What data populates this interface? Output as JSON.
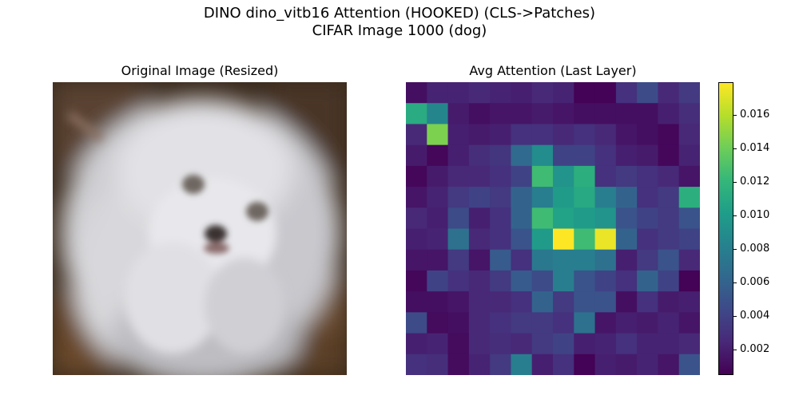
{
  "figure": {
    "title_line1": "DINO dino_vitb16 Attention (HOOKED) (CLS->Patches)",
    "title_line2": "CIFAR Image 1000 (dog)"
  },
  "left_panel": {
    "title": "Original Image (Resized)"
  },
  "right_panel": {
    "title": "Avg Attention (Last Layer)"
  },
  "chart_data": {
    "type": "heatmap",
    "title": "Avg Attention (Last Layer)",
    "colormap": "viridis",
    "colorbar": {
      "vmin": 0.0005,
      "vmax": 0.018,
      "ticks": [
        0.002,
        0.004,
        0.006,
        0.008,
        0.01,
        0.012,
        0.014,
        0.016
      ],
      "tick_labels": [
        "0.002",
        "0.004",
        "0.006",
        "0.008",
        "0.010",
        "0.012",
        "0.014",
        "0.016"
      ]
    },
    "grid": false,
    "rows": 14,
    "cols": 14,
    "values": [
      [
        0.0012,
        0.0022,
        0.0022,
        0.0025,
        0.0022,
        0.002,
        0.0025,
        0.0022,
        0.0006,
        0.0006,
        0.003,
        0.0045,
        0.0025,
        0.0035
      ],
      [
        0.0112,
        0.0085,
        0.0018,
        0.0012,
        0.0015,
        0.0015,
        0.0018,
        0.0015,
        0.0012,
        0.0012,
        0.0012,
        0.0012,
        0.002,
        0.0028
      ],
      [
        0.0025,
        0.0145,
        0.002,
        0.0018,
        0.002,
        0.003,
        0.003,
        0.0025,
        0.003,
        0.0025,
        0.0015,
        0.0012,
        0.0008,
        0.0025
      ],
      [
        0.0018,
        0.0008,
        0.002,
        0.0028,
        0.0032,
        0.0065,
        0.009,
        0.004,
        0.004,
        0.003,
        0.002,
        0.0018,
        0.0008,
        0.0022
      ],
      [
        0.0008,
        0.0018,
        0.0025,
        0.0025,
        0.003,
        0.004,
        0.0125,
        0.0095,
        0.0115,
        0.003,
        0.0035,
        0.003,
        0.0025,
        0.0015
      ],
      [
        0.0015,
        0.0022,
        0.0035,
        0.004,
        0.0035,
        0.006,
        0.008,
        0.01,
        0.011,
        0.008,
        0.006,
        0.003,
        0.0035,
        0.0115
      ],
      [
        0.0025,
        0.002,
        0.0045,
        0.002,
        0.003,
        0.006,
        0.0125,
        0.0105,
        0.01,
        0.0095,
        0.005,
        0.004,
        0.0035,
        0.005
      ],
      [
        0.002,
        0.0022,
        0.007,
        0.0025,
        0.003,
        0.005,
        0.01,
        0.018,
        0.0125,
        0.0175,
        0.006,
        0.003,
        0.0035,
        0.004
      ],
      [
        0.0015,
        0.0015,
        0.0035,
        0.0015,
        0.0055,
        0.003,
        0.0075,
        0.008,
        0.008,
        0.007,
        0.002,
        0.0035,
        0.005,
        0.0025
      ],
      [
        0.0008,
        0.004,
        0.003,
        0.0025,
        0.0035,
        0.0055,
        0.0045,
        0.008,
        0.005,
        0.004,
        0.003,
        0.006,
        0.004,
        0.0006
      ],
      [
        0.0012,
        0.0012,
        0.0015,
        0.0025,
        0.0025,
        0.003,
        0.006,
        0.0035,
        0.005,
        0.005,
        0.0012,
        0.003,
        0.0018,
        0.002
      ],
      [
        0.0045,
        0.001,
        0.0012,
        0.0025,
        0.003,
        0.0035,
        0.0035,
        0.003,
        0.007,
        0.0015,
        0.002,
        0.0018,
        0.0022,
        0.0015
      ],
      [
        0.002,
        0.0022,
        0.001,
        0.0025,
        0.0028,
        0.0025,
        0.0035,
        0.004,
        0.002,
        0.0022,
        0.003,
        0.0022,
        0.0022,
        0.0025
      ],
      [
        0.003,
        0.0028,
        0.001,
        0.0022,
        0.0035,
        0.008,
        0.002,
        0.003,
        0.0006,
        0.002,
        0.0018,
        0.0022,
        0.0015,
        0.005
      ]
    ]
  }
}
